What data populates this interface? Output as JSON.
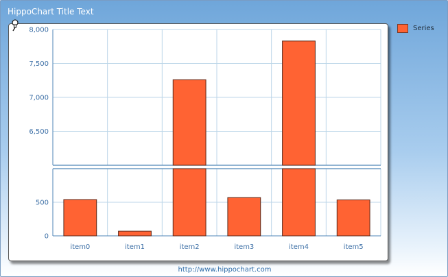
{
  "title": "HippoChart Title Text",
  "footer": "http://www.hippochart.com",
  "colors": {
    "bar_fill": "#ff6333",
    "bar_stroke": "#5a2a1c",
    "grid": "#bcd6e8",
    "axis": "#4f86b7",
    "background_top": "#6fa6da"
  },
  "icons": {
    "pin": "pushpin-icon"
  },
  "chart_data": {
    "type": "bar",
    "categories": [
      "item0",
      "item1",
      "item2",
      "item3",
      "item4",
      "item5"
    ],
    "series": [
      {
        "name": "Series",
        "values": [
          540,
          70,
          7260,
          570,
          7830,
          535
        ]
      }
    ],
    "axis_break": {
      "lower_range": [
        0,
        1000
      ],
      "upper_range": [
        6000,
        8000
      ]
    },
    "y_ticks_lower": [
      {
        "value": 0,
        "label": "0"
      },
      {
        "value": 500,
        "label": "500"
      }
    ],
    "y_ticks_upper": [
      {
        "value": 6500,
        "label": "6,500"
      },
      {
        "value": 7000,
        "label": "7,000"
      },
      {
        "value": 7500,
        "label": "7,500"
      },
      {
        "value": 8000,
        "label": "8,000"
      }
    ],
    "grid": true,
    "legend_position": "top-right"
  }
}
